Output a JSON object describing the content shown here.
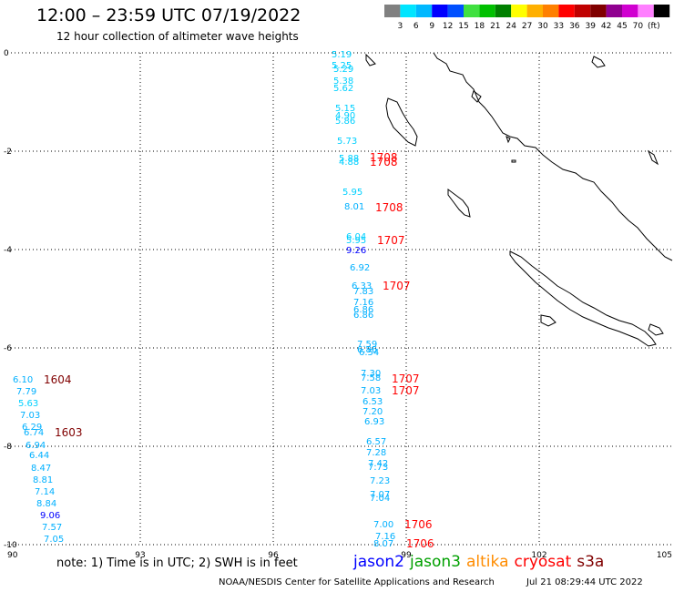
{
  "header": {
    "title": "12:00 – 23:59 UTC 07/19/2022",
    "subtitle": "12 hour collection of altimeter wave heights"
  },
  "color_scale": {
    "colors": [
      "#808080",
      "#00e5ff",
      "#00b8ff",
      "#0000ff",
      "#0050ff",
      "#40e040",
      "#00c000",
      "#008000",
      "#ffff00",
      "#ffb000",
      "#ff8000",
      "#ff0000",
      "#c00000",
      "#800000",
      "#900090",
      "#d000d0",
      "#ff80ff",
      "#000000"
    ],
    "labels": [
      "3",
      "6",
      "9",
      "12",
      "15",
      "18",
      "21",
      "24",
      "27",
      "30",
      "33",
      "36",
      "39",
      "42",
      "45",
      "70",
      "(ft)"
    ]
  },
  "axes": {
    "x_ticks": [
      "90",
      "93",
      "96",
      "99",
      "102",
      "105"
    ],
    "y_ticks": [
      "0",
      "-2",
      "-4",
      "-6",
      "-8",
      "-10"
    ]
  },
  "wave_heights": [
    {
      "v": "5.19",
      "c": "#00d0ff"
    },
    {
      "v": "5.25",
      "c": "#00d0ff"
    },
    {
      "v": "5.29",
      "c": "#00d0ff"
    },
    {
      "v": "5.38",
      "c": "#00d0ff"
    },
    {
      "v": "5.62",
      "c": "#00d0ff"
    },
    {
      "v": "5.15",
      "c": "#00d0ff"
    },
    {
      "v": "4.90",
      "c": "#00d0ff"
    },
    {
      "v": "5.86",
      "c": "#00d0ff"
    },
    {
      "v": "5.73",
      "c": "#00d0ff"
    },
    {
      "v": "5.88",
      "c": "#00d0ff"
    },
    {
      "v": "4.88",
      "c": "#00d0ff"
    },
    {
      "v": "5.95",
      "c": "#00d0ff"
    },
    {
      "v": "8.01",
      "c": "#00b0ff"
    },
    {
      "v": "6.04",
      "c": "#00d0ff"
    },
    {
      "v": "5.95",
      "c": "#00d0ff"
    },
    {
      "v": "9.26",
      "c": "#0000ff"
    },
    {
      "v": "6.92",
      "c": "#00b0ff"
    },
    {
      "v": "6.33",
      "c": "#00b0ff"
    },
    {
      "v": "7.83",
      "c": "#00b0ff"
    },
    {
      "v": "7.16",
      "c": "#00b0ff"
    },
    {
      "v": "6.86",
      "c": "#00b0ff"
    },
    {
      "v": "6.86",
      "c": "#00b0ff"
    },
    {
      "v": "7.59",
      "c": "#00b0ff"
    },
    {
      "v": "6.86",
      "c": "#00b0ff"
    },
    {
      "v": "6.54",
      "c": "#00b0ff"
    },
    {
      "v": "7.30",
      "c": "#00b0ff"
    },
    {
      "v": "7.58",
      "c": "#00b0ff"
    },
    {
      "v": "7.03",
      "c": "#00b0ff"
    },
    {
      "v": "6.53",
      "c": "#00b0ff"
    },
    {
      "v": "7.20",
      "c": "#00b0ff"
    },
    {
      "v": "6.93",
      "c": "#00b0ff"
    },
    {
      "v": "6.57",
      "c": "#00b0ff"
    },
    {
      "v": "7.28",
      "c": "#00b0ff"
    },
    {
      "v": "7.42",
      "c": "#00b0ff"
    },
    {
      "v": "7.73",
      "c": "#00b0ff"
    },
    {
      "v": "7.23",
      "c": "#00b0ff"
    },
    {
      "v": "7.07",
      "c": "#00b0ff"
    },
    {
      "v": "7.04",
      "c": "#00b0ff"
    },
    {
      "v": "7.00",
      "c": "#00b0ff"
    },
    {
      "v": "7.16",
      "c": "#00b0ff"
    },
    {
      "v": "8.07",
      "c": "#00b0ff"
    },
    {
      "v": "6.10",
      "c": "#00b0ff"
    },
    {
      "v": "7.79",
      "c": "#00b0ff"
    },
    {
      "v": "5.63",
      "c": "#00d0ff"
    },
    {
      "v": "7.03",
      "c": "#00b0ff"
    },
    {
      "v": "6.29",
      "c": "#00b0ff"
    },
    {
      "v": "6.74",
      "c": "#00b0ff"
    },
    {
      "v": "6.94",
      "c": "#00b0ff"
    },
    {
      "v": "6.44",
      "c": "#00b0ff"
    },
    {
      "v": "8.47",
      "c": "#00b0ff"
    },
    {
      "v": "8.81",
      "c": "#00b0ff"
    },
    {
      "v": "7.14",
      "c": "#00b0ff"
    },
    {
      "v": "8.84",
      "c": "#00b0ff"
    },
    {
      "v": "9.06",
      "c": "#0000ff"
    },
    {
      "v": "7.57",
      "c": "#00b0ff"
    },
    {
      "v": "7.05",
      "c": "#00b0ff"
    }
  ],
  "time_labels": [
    {
      "t": "1708",
      "c": "#ff0000"
    },
    {
      "t": "1708",
      "c": "#ff0000"
    },
    {
      "t": "1708",
      "c": "#ff0000"
    },
    {
      "t": "1707",
      "c": "#ff0000"
    },
    {
      "t": "1707",
      "c": "#ff0000"
    },
    {
      "t": "1707",
      "c": "#ff0000"
    },
    {
      "t": "1707",
      "c": "#ff0000"
    },
    {
      "t": "1706",
      "c": "#ff0000"
    },
    {
      "t": "1706",
      "c": "#ff0000"
    },
    {
      "t": "1604",
      "c": "#800000"
    },
    {
      "t": "1603",
      "c": "#800000"
    }
  ],
  "footer": {
    "note": "note: 1) Time is in UTC; 2) SWH is in feet",
    "satellites": [
      {
        "name": "jason2",
        "color": "#0000ff"
      },
      {
        "name": "jason3",
        "color": "#00a000"
      },
      {
        "name": "altika",
        "color": "#ff8c00"
      },
      {
        "name": "cryosat",
        "color": "#ff0000"
      },
      {
        "name": "s3a",
        "color": "#800000"
      }
    ],
    "credit": "NOAA/NESDIS Center for Satellite Applications and Research",
    "timestamp": "Jul 21 08:29:44 UTC 2022"
  }
}
